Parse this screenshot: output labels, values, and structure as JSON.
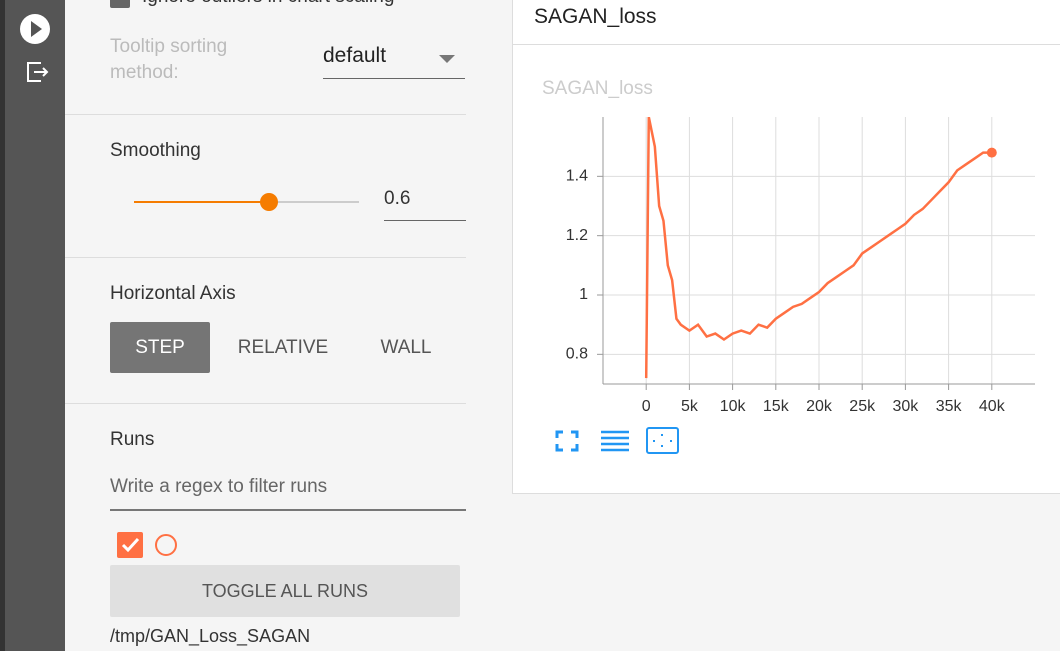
{
  "sidebar": {
    "ignore_outliers": "Ignore outliers in chart scaling",
    "tooltip_label": "Tooltip sorting method:",
    "tooltip_value": "default",
    "smoothing_label": "Smoothing",
    "smoothing": 0.6,
    "smoothing_range": [
      0,
      1
    ],
    "axis_label": "Horizontal Axis",
    "axis_options": [
      "STEP",
      "RELATIVE",
      "WALL"
    ],
    "axis_selected": 0,
    "runs_label": "Runs",
    "runs_filter_placeholder": "Write a regex to filter runs",
    "toggle_all": "TOGGLE ALL RUNS",
    "run_name": "/tmp/GAN_Loss_SAGAN"
  },
  "card": {
    "title": "SAGAN_loss"
  },
  "chart_data": {
    "type": "line",
    "title": "SAGAN_loss",
    "color": "#ff7043",
    "grid": true,
    "x": [
      0,
      300,
      1000,
      1500,
      2000,
      2500,
      3000,
      3500,
      4000,
      5000,
      6000,
      7000,
      8000,
      9000,
      10000,
      11000,
      12000,
      13000,
      14000,
      15000,
      16000,
      17000,
      18000,
      19000,
      20000,
      21000,
      22000,
      23000,
      24000,
      25000,
      26000,
      27000,
      28000,
      29000,
      30000,
      31000,
      32000,
      33000,
      34000,
      35000,
      36000,
      37000,
      38000,
      39000,
      40000
    ],
    "values": [
      0.72,
      1.6,
      1.5,
      1.3,
      1.25,
      1.1,
      1.05,
      0.92,
      0.9,
      0.88,
      0.9,
      0.86,
      0.87,
      0.85,
      0.87,
      0.88,
      0.87,
      0.9,
      0.89,
      0.92,
      0.94,
      0.96,
      0.97,
      0.99,
      1.01,
      1.04,
      1.06,
      1.08,
      1.1,
      1.14,
      1.16,
      1.18,
      1.2,
      1.22,
      1.24,
      1.27,
      1.29,
      1.32,
      1.35,
      1.38,
      1.42,
      1.44,
      1.46,
      1.48,
      1.48
    ],
    "xlim": [
      -5000,
      45000
    ],
    "ylim": [
      0.7,
      1.6
    ],
    "xticks": [
      0,
      {
        "value": 5000,
        "label": "5k"
      },
      {
        "value": 10000,
        "label": "10k"
      },
      {
        "value": 15000,
        "label": "15k"
      },
      {
        "value": 20000,
        "label": "20k"
      },
      {
        "value": 25000,
        "label": "25k"
      },
      {
        "value": 30000,
        "label": "30k"
      },
      {
        "value": 35000,
        "label": "35k"
      },
      {
        "value": 40000,
        "label": "40k"
      }
    ],
    "yticks": [
      0.8,
      1,
      1.2,
      1.4
    ]
  }
}
